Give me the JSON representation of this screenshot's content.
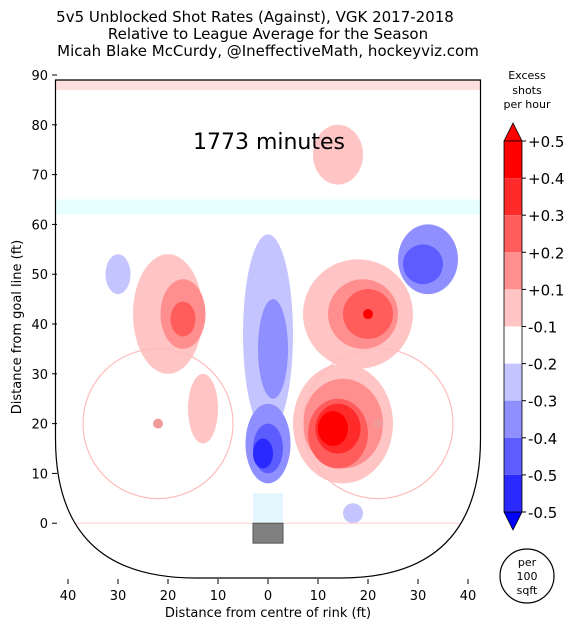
{
  "chart_data": {
    "type": "heatmap",
    "title_lines": [
      "5v5 Unblocked Shot Rates (Against), VGK 2017-2018",
      "Relative to League Average for the Season",
      "Micah Blake McCurdy, @IneffectiveMath, hockeyviz.com"
    ],
    "xlabel": "Distance from centre of rink (ft)",
    "ylabel": "Distance from goal line (ft)",
    "xlim": [
      -40,
      40
    ],
    "ylim": [
      -11,
      90
    ],
    "x_ticks": [
      {
        "v": -40,
        "label": "40"
      },
      {
        "v": -30,
        "label": "30"
      },
      {
        "v": -20,
        "label": "20"
      },
      {
        "v": -10,
        "label": "10"
      },
      {
        "v": 0,
        "label": "0"
      },
      {
        "v": 10,
        "label": "10"
      },
      {
        "v": 20,
        "label": "20"
      },
      {
        "v": 30,
        "label": "30"
      },
      {
        "v": 40,
        "label": "40"
      }
    ],
    "y_ticks": [
      0,
      10,
      20,
      30,
      40,
      50,
      60,
      70,
      80,
      90
    ],
    "annotation": "1773 minutes",
    "colorbar": {
      "title_lines": [
        "Excess",
        "shots",
        "per hour"
      ],
      "levels": [
        {
          "label": "+0.5",
          "color": "#ff0000",
          "v": 0.5
        },
        {
          "label": "+0.4",
          "color": "#ff2a2a",
          "v": 0.4
        },
        {
          "label": "+0.3",
          "color": "#ff5c5c",
          "v": 0.3
        },
        {
          "label": "+0.2",
          "color": "#ff8f8f",
          "v": 0.2
        },
        {
          "label": "+0.1",
          "color": "#ffc4c4",
          "v": 0.1
        },
        {
          "label": "-0.1",
          "color": "#ffffff",
          "v": -0.1
        },
        {
          "label": "-0.2",
          "color": "#c4c4ff",
          "v": -0.2
        },
        {
          "label": "-0.3",
          "color": "#8f8fff",
          "v": -0.3
        },
        {
          "label": "-0.4",
          "color": "#5c5cff",
          "v": -0.4
        },
        {
          "label": "-0.5",
          "color": "#2a2aff",
          "v": -0.5
        }
      ],
      "extend_high_color": "#ff0000",
      "extend_low_color": "#0000ff"
    },
    "unit_badge_lines": [
      "per",
      "100",
      "sqft"
    ],
    "series": [
      {
        "cx": -30,
        "cy": 50,
        "rx": 2.5,
        "ry": 4,
        "value": -0.2
      },
      {
        "cx": -20,
        "cy": 42,
        "rx": 7,
        "ry": 12,
        "value": 0.1
      },
      {
        "cx": -17,
        "cy": 42,
        "rx": 4.5,
        "ry": 7,
        "value": 0.2
      },
      {
        "cx": -17,
        "cy": 41,
        "rx": 2.5,
        "ry": 3.5,
        "value": 0.3
      },
      {
        "cx": -13,
        "cy": 23,
        "rx": 3,
        "ry": 7,
        "value": 0.1
      },
      {
        "cx": 0,
        "cy": 38,
        "rx": 5,
        "ry": 20,
        "value": -0.2
      },
      {
        "cx": 1,
        "cy": 35,
        "rx": 3,
        "ry": 10,
        "value": -0.3
      },
      {
        "cx": 0,
        "cy": 16,
        "rx": 4.5,
        "ry": 8,
        "value": -0.3
      },
      {
        "cx": 0,
        "cy": 15,
        "rx": 3,
        "ry": 5,
        "value": -0.4
      },
      {
        "cx": -1,
        "cy": 14,
        "rx": 2,
        "ry": 3,
        "value": -0.5
      },
      {
        "cx": 14,
        "cy": 74,
        "rx": 5,
        "ry": 6,
        "value": 0.1
      },
      {
        "cx": 18,
        "cy": 42,
        "rx": 11,
        "ry": 11,
        "value": 0.1
      },
      {
        "cx": 19,
        "cy": 42,
        "rx": 7,
        "ry": 7,
        "value": 0.2
      },
      {
        "cx": 20,
        "cy": 42,
        "rx": 5,
        "ry": 5,
        "value": 0.3
      },
      {
        "cx": 20,
        "cy": 42,
        "rx": 1,
        "ry": 1,
        "value": 0.5
      },
      {
        "cx": 15,
        "cy": 20,
        "rx": 10,
        "ry": 12,
        "value": 0.1
      },
      {
        "cx": 15,
        "cy": 20,
        "rx": 8,
        "ry": 9,
        "value": 0.2
      },
      {
        "cx": 14,
        "cy": 18,
        "rx": 6,
        "ry": 7,
        "value": 0.3
      },
      {
        "cx": 14,
        "cy": 19,
        "rx": 4.5,
        "ry": 5,
        "value": 0.4
      },
      {
        "cx": 13,
        "cy": 19,
        "rx": 3,
        "ry": 3.5,
        "value": 0.5
      },
      {
        "cx": 32,
        "cy": 53,
        "rx": 6,
        "ry": 7,
        "value": -0.3
      },
      {
        "cx": 31,
        "cy": 52,
        "rx": 4,
        "ry": 4,
        "value": -0.4
      },
      {
        "cx": 17,
        "cy": 2,
        "rx": 2,
        "ry": 2,
        "value": -0.2
      }
    ]
  }
}
